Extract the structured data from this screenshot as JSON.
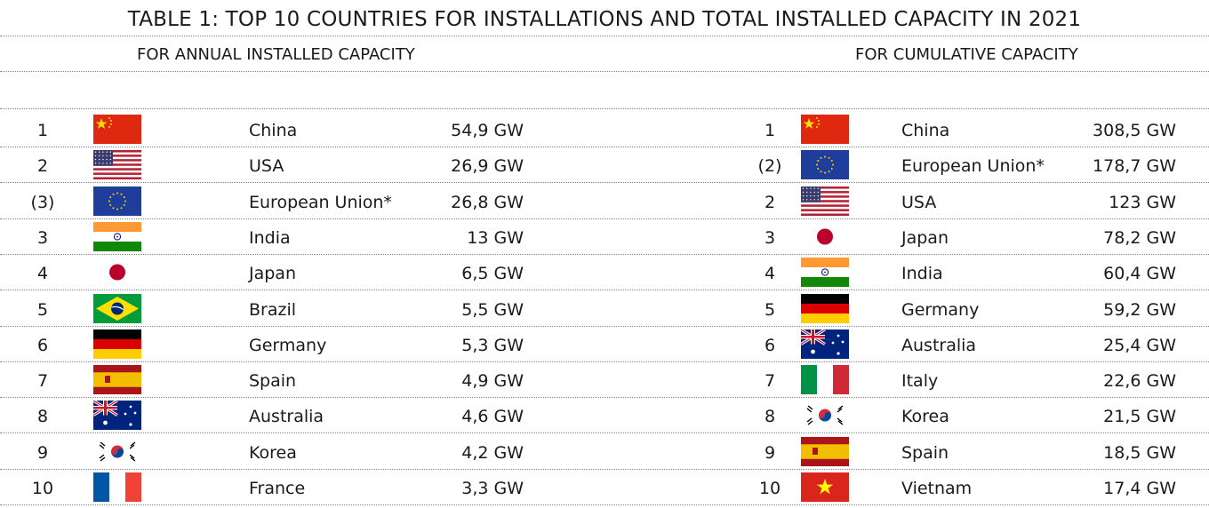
{
  "title": "TABLE 1: TOP 10 COUNTRIES FOR INSTALLATIONS AND TOTAL INSTALLED CAPACITY IN 2021",
  "annual": {
    "heading": "FOR ANNUAL INSTALLED CAPACITY",
    "rows": [
      {
        "rank": "1",
        "flag": "china-flag",
        "country": "China",
        "value": "54,9 GW"
      },
      {
        "rank": "2",
        "flag": "usa-flag",
        "country": "USA",
        "value": "26,9 GW"
      },
      {
        "rank": "(3)",
        "flag": "eu-flag",
        "country": "European Union*",
        "value": "26,8 GW"
      },
      {
        "rank": "3",
        "flag": "india-flag",
        "country": "India",
        "value": "13 GW"
      },
      {
        "rank": "4",
        "flag": "japan-flag",
        "country": "Japan",
        "value": "6,5 GW"
      },
      {
        "rank": "5",
        "flag": "brazil-flag",
        "country": "Brazil",
        "value": "5,5 GW"
      },
      {
        "rank": "6",
        "flag": "germany-flag",
        "country": "Germany",
        "value": "5,3 GW"
      },
      {
        "rank": "7",
        "flag": "spain-flag",
        "country": "Spain",
        "value": "4,9 GW"
      },
      {
        "rank": "8",
        "flag": "australia-flag",
        "country": "Australia",
        "value": "4,6 GW"
      },
      {
        "rank": "9",
        "flag": "korea-flag",
        "country": "Korea",
        "value": "4,2 GW"
      },
      {
        "rank": "10",
        "flag": "france-flag",
        "country": "France",
        "value": "3,3 GW"
      }
    ]
  },
  "cumulative": {
    "heading": "FOR CUMULATIVE CAPACITY",
    "rows": [
      {
        "rank": "1",
        "flag": "china-flag",
        "country": "China",
        "value": "308,5 GW"
      },
      {
        "rank": "(2)",
        "flag": "eu-flag",
        "country": "European Union*",
        "value": "178,7 GW"
      },
      {
        "rank": "2",
        "flag": "usa-flag",
        "country": "USA",
        "value": "123 GW"
      },
      {
        "rank": "3",
        "flag": "japan-flag",
        "country": "Japan",
        "value": "78,2 GW"
      },
      {
        "rank": "4",
        "flag": "india-flag",
        "country": "India",
        "value": "60,4 GW"
      },
      {
        "rank": "5",
        "flag": "germany-flag",
        "country": "Germany",
        "value": "59,2 GW"
      },
      {
        "rank": "6",
        "flag": "australia-flag",
        "country": "Australia",
        "value": "25,4 GW"
      },
      {
        "rank": "7",
        "flag": "italy-flag",
        "country": "Italy",
        "value": "22,6 GW"
      },
      {
        "rank": "8",
        "flag": "korea-flag",
        "country": "Korea",
        "value": "21,5 GW"
      },
      {
        "rank": "9",
        "flag": "spain-flag",
        "country": "Spain",
        "value": "18,5 GW"
      },
      {
        "rank": "10",
        "flag": "vietnam-flag",
        "country": "Vietnam",
        "value": "17,4 GW"
      }
    ]
  },
  "colors": {
    "rule": "#5b8fc7",
    "text": "#1a1a1a"
  }
}
